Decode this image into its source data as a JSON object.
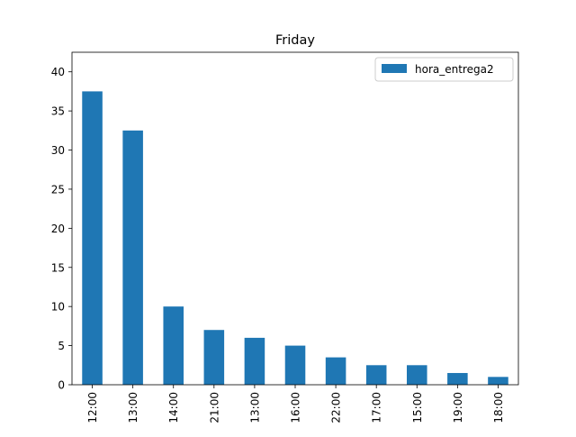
{
  "chart_data": {
    "type": "bar",
    "title": "Friday",
    "xlabel": "",
    "ylabel": "",
    "categories": [
      "12:00",
      "13:00",
      "14:00",
      "21:00",
      "13:00",
      "16:00",
      "22:00",
      "17:00",
      "15:00",
      "19:00",
      "18:00"
    ],
    "series": [
      {
        "name": "hora_entrega2",
        "values": [
          37.5,
          32.5,
          10,
          7,
          6,
          5,
          3.5,
          2.5,
          2.5,
          1.5,
          1
        ],
        "color": "#1f77b4"
      }
    ],
    "ylim": [
      0,
      42.5
    ],
    "yticks": [
      0,
      5,
      10,
      15,
      20,
      25,
      30,
      35,
      40
    ],
    "grid": false,
    "legend_position": "top-right"
  }
}
